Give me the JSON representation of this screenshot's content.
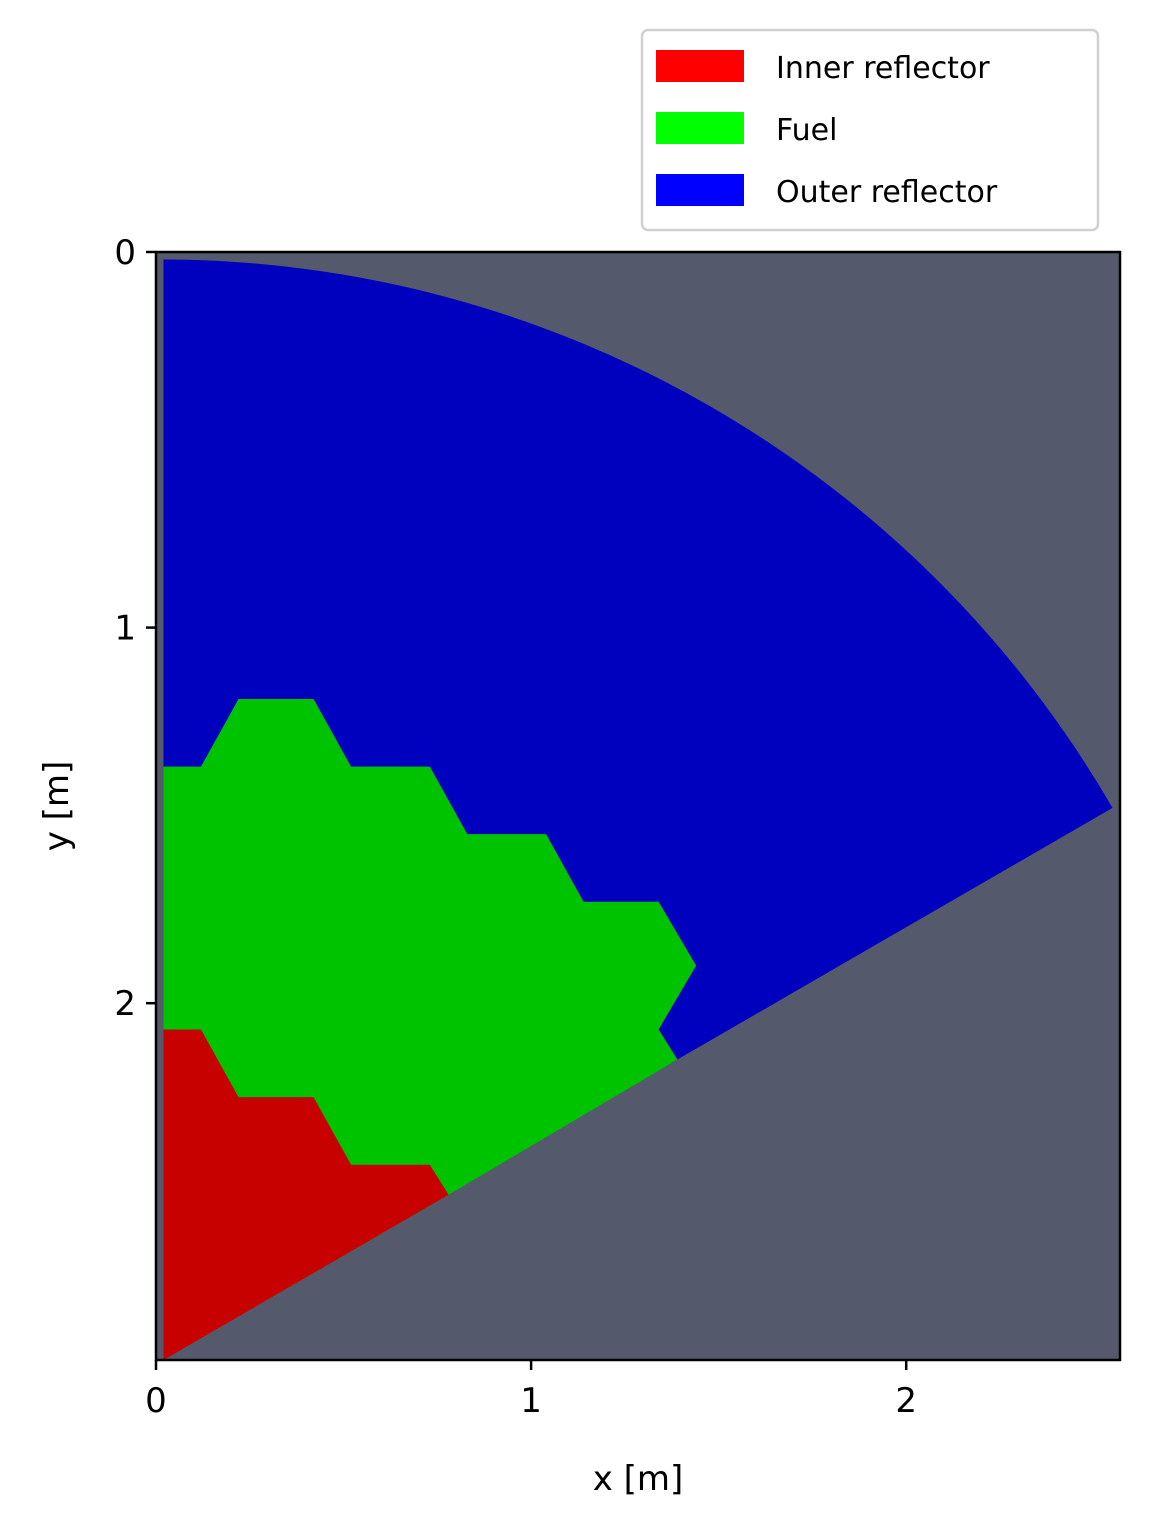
{
  "chart_data": {
    "type": "heatmap",
    "title": "",
    "xlabel": "x [m]",
    "ylabel": "y [m]",
    "xlim": [
      0,
      2.57
    ],
    "ylim": [
      2.95,
      0
    ],
    "y_inverted": true,
    "grid": false,
    "legend_placement": "top-right, above plot",
    "background_color": "#545a6c",
    "x_ticks": [
      {
        "value": 0,
        "label": "0"
      },
      {
        "value": 1,
        "label": "1"
      },
      {
        "value": 2,
        "label": "2"
      }
    ],
    "y_ticks": [
      {
        "value": 0,
        "label": "0"
      },
      {
        "value": 1,
        "label": "1"
      },
      {
        "value": 2,
        "label": "2"
      }
    ],
    "legend": [
      {
        "label": "Inner reflector",
        "color": "#ff0000"
      },
      {
        "label": "Fuel",
        "color": "#00ff00"
      },
      {
        "label": "Outer reflector",
        "color": "#0000ff"
      }
    ],
    "regions": [
      {
        "label": "Outer reflector",
        "color": "#0000bf",
        "arc": {
          "center": [
            0.02,
            2.95
          ],
          "radius": 2.93
        },
        "boundary": [
          [
            0.02,
            0.02
          ],
          [
            2.55,
            1.48
          ],
          [
            1.39,
            2.15
          ],
          [
            0.02,
            2.95
          ]
        ]
      },
      {
        "label": "Fuel",
        "color": "#00c300",
        "boundary": [
          [
            0.02,
            1.37
          ],
          [
            0.12,
            1.37
          ],
          [
            0.22,
            1.19
          ],
          [
            0.42,
            1.19
          ],
          [
            0.52,
            1.37
          ],
          [
            0.73,
            1.37
          ],
          [
            0.83,
            1.55
          ],
          [
            1.04,
            1.55
          ],
          [
            1.14,
            1.73
          ],
          [
            1.34,
            1.73
          ],
          [
            1.44,
            1.9
          ],
          [
            1.34,
            2.07
          ],
          [
            1.39,
            2.15
          ],
          [
            0.78,
            2.51
          ],
          [
            0.02,
            2.95
          ]
        ]
      },
      {
        "label": "Inner reflector",
        "color": "#c70000",
        "boundary": [
          [
            0.02,
            2.07
          ],
          [
            0.12,
            2.07
          ],
          [
            0.22,
            2.25
          ],
          [
            0.42,
            2.25
          ],
          [
            0.52,
            2.43
          ],
          [
            0.73,
            2.43
          ],
          [
            0.78,
            2.51
          ],
          [
            0.02,
            2.95
          ]
        ]
      }
    ]
  }
}
